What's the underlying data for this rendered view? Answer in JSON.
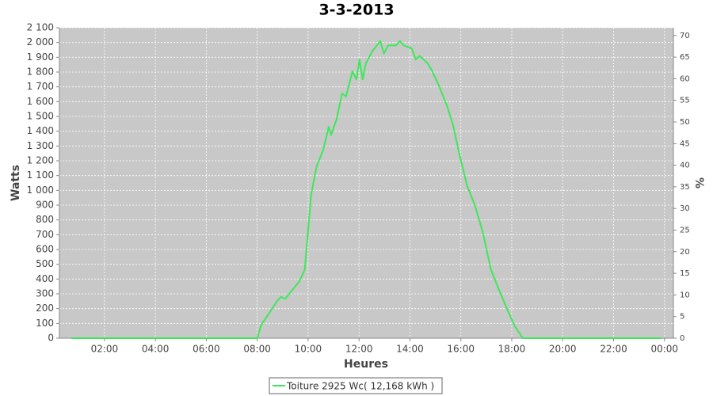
{
  "chart_data": {
    "type": "line",
    "title": "3-3-2013",
    "x_label": "Heures",
    "y_label": "Watts",
    "y2_label": "%",
    "x": [
      0.7,
      8.0,
      8.16,
      8.47,
      8.78,
      8.94,
      9.1,
      9.4,
      9.66,
      9.87,
      10.03,
      10.12,
      10.34,
      10.59,
      10.81,
      10.9,
      11.12,
      11.33,
      11.49,
      11.74,
      11.9,
      12.02,
      12.14,
      12.27,
      12.52,
      12.83,
      12.98,
      13.14,
      13.45,
      13.6,
      13.76,
      14.07,
      14.23,
      14.38,
      14.69,
      14.85,
      15.16,
      15.47,
      15.69,
      15.94,
      16.25,
      16.56,
      16.87,
      17.18,
      17.49,
      17.81,
      18.12,
      18.34,
      18.43,
      23.9
    ],
    "series": [
      {
        "name": "Toiture 2925 Wc( 12,168 kWh )",
        "color": "#3de85a",
        "values": [
          0,
          0,
          90,
          170,
          250,
          280,
          265,
          330,
          385,
          465,
          790,
          975,
          1165,
          1270,
          1430,
          1375,
          1480,
          1655,
          1635,
          1805,
          1750,
          1885,
          1750,
          1860,
          1940,
          2010,
          1925,
          1980,
          1980,
          2010,
          1980,
          1960,
          1885,
          1910,
          1860,
          1815,
          1700,
          1565,
          1445,
          1245,
          1030,
          895,
          710,
          465,
          330,
          200,
          80,
          25,
          0,
          0
        ]
      }
    ],
    "xlim": [
      0.23,
      24.35
    ],
    "xticks": [
      {
        "value": 2,
        "label": "02:00"
      },
      {
        "value": 4,
        "label": "04:00"
      },
      {
        "value": 6,
        "label": "06:00"
      },
      {
        "value": 8,
        "label": "08:00"
      },
      {
        "value": 10,
        "label": "10:00"
      },
      {
        "value": 12,
        "label": "12:00"
      },
      {
        "value": 14,
        "label": "14:00"
      },
      {
        "value": 16,
        "label": "16:00"
      },
      {
        "value": 18,
        "label": "18:00"
      },
      {
        "value": 20,
        "label": "20:00"
      },
      {
        "value": 22,
        "label": "22:00"
      },
      {
        "value": 24,
        "label": "00:00"
      }
    ],
    "ylim": [
      0,
      2100
    ],
    "yticks": [
      0,
      100,
      200,
      300,
      400,
      500,
      600,
      700,
      800,
      900,
      {
        "value": 1000,
        "label": "1 000"
      },
      {
        "value": 1100,
        "label": "1 100"
      },
      {
        "value": 1200,
        "label": "1 200"
      },
      {
        "value": 1300,
        "label": "1 300"
      },
      {
        "value": 1400,
        "label": "1 400"
      },
      {
        "value": 1500,
        "label": "1 500"
      },
      {
        "value": 1600,
        "label": "1 600"
      },
      {
        "value": 1700,
        "label": "1 700"
      },
      {
        "value": 1800,
        "label": "1 800"
      },
      {
        "value": 1900,
        "label": "1 900"
      },
      {
        "value": 2000,
        "label": "2 000"
      },
      {
        "value": 2100,
        "label": "2 100"
      }
    ],
    "y2lim": [
      0,
      71.79
    ],
    "y2ticks": [
      0,
      5,
      10,
      15,
      20,
      25,
      30,
      35,
      40,
      45,
      50,
      55,
      60,
      65,
      70
    ],
    "grid": true
  }
}
